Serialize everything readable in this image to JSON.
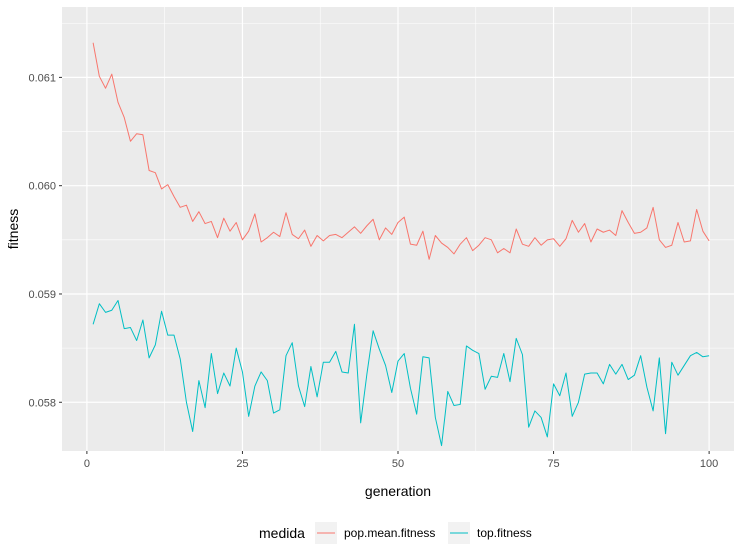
{
  "chart_data": {
    "type": "line",
    "xlabel": "generation",
    "ylabel": "fitness",
    "xlim": [
      -4,
      104
    ],
    "ylim": [
      0.05755,
      0.06165
    ],
    "x_ticks": [
      0,
      25,
      50,
      75,
      100
    ],
    "x_tick_labels": [
      "0",
      "25",
      "50",
      "75",
      "100"
    ],
    "y_ticks": [
      0.058,
      0.059,
      0.06,
      0.061
    ],
    "y_tick_labels": [
      "0.058",
      "0.059",
      "0.060",
      "0.061"
    ],
    "grid": true,
    "legend": {
      "title": "medida",
      "position": "bottom"
    },
    "x": [
      1,
      2,
      3,
      4,
      5,
      6,
      7,
      8,
      9,
      10,
      11,
      12,
      13,
      14,
      15,
      16,
      17,
      18,
      19,
      20,
      21,
      22,
      23,
      24,
      25,
      26,
      27,
      28,
      29,
      30,
      31,
      32,
      33,
      34,
      35,
      36,
      37,
      38,
      39,
      40,
      41,
      42,
      43,
      44,
      45,
      46,
      47,
      48,
      49,
      50,
      51,
      52,
      53,
      54,
      55,
      56,
      57,
      58,
      59,
      60,
      61,
      62,
      63,
      64,
      65,
      66,
      67,
      68,
      69,
      70,
      71,
      72,
      73,
      74,
      75,
      76,
      77,
      78,
      79,
      80,
      81,
      82,
      83,
      84,
      85,
      86,
      87,
      88,
      89,
      90,
      91,
      92,
      93,
      94,
      95,
      96,
      97,
      98,
      99,
      100
    ],
    "series": [
      {
        "name": "pop.mean.fitness",
        "color": "#F8766D",
        "values": [
          0.06132,
          0.06101,
          0.0609,
          0.06103,
          0.06077,
          0.06063,
          0.06041,
          0.06048,
          0.06047,
          0.06014,
          0.06012,
          0.05997,
          0.06001,
          0.0599,
          0.0598,
          0.05982,
          0.05967,
          0.05976,
          0.05965,
          0.05967,
          0.05952,
          0.0597,
          0.05958,
          0.05966,
          0.0595,
          0.05958,
          0.05974,
          0.05948,
          0.05952,
          0.05957,
          0.05953,
          0.05975,
          0.05955,
          0.05951,
          0.05959,
          0.05944,
          0.05954,
          0.05949,
          0.05954,
          0.05955,
          0.05952,
          0.05957,
          0.05962,
          0.05956,
          0.05963,
          0.05969,
          0.0595,
          0.05961,
          0.05955,
          0.05966,
          0.05971,
          0.05946,
          0.05945,
          0.05958,
          0.05932,
          0.05954,
          0.05947,
          0.05943,
          0.05937,
          0.05946,
          0.05952,
          0.0594,
          0.05945,
          0.05952,
          0.0595,
          0.05938,
          0.05942,
          0.05938,
          0.0596,
          0.05946,
          0.05944,
          0.05952,
          0.05945,
          0.0595,
          0.05951,
          0.05944,
          0.05951,
          0.05968,
          0.05957,
          0.05965,
          0.05948,
          0.0596,
          0.05957,
          0.05959,
          0.05954,
          0.05977,
          0.05966,
          0.05956,
          0.05957,
          0.05961,
          0.0598,
          0.0595,
          0.05943,
          0.05945,
          0.05966,
          0.05948,
          0.05949,
          0.05978,
          0.05958,
          0.05949
        ]
      },
      {
        "name": "top.fitness",
        "color": "#00BFC4",
        "values": [
          0.05872,
          0.05891,
          0.05883,
          0.05885,
          0.05894,
          0.05868,
          0.05869,
          0.05857,
          0.05876,
          0.05841,
          0.05853,
          0.05884,
          0.05862,
          0.05862,
          0.0584,
          0.058,
          0.05773,
          0.0582,
          0.05795,
          0.05845,
          0.05808,
          0.05827,
          0.05815,
          0.0585,
          0.05828,
          0.05787,
          0.05815,
          0.05828,
          0.0582,
          0.0579,
          0.05793,
          0.05843,
          0.05855,
          0.05815,
          0.05796,
          0.05833,
          0.05805,
          0.05837,
          0.05837,
          0.05847,
          0.05828,
          0.05827,
          0.05872,
          0.05781,
          0.05826,
          0.05866,
          0.05849,
          0.05834,
          0.05809,
          0.05838,
          0.05845,
          0.05813,
          0.05789,
          0.05842,
          0.05841,
          0.05786,
          0.0576,
          0.0581,
          0.05797,
          0.05798,
          0.05852,
          0.05848,
          0.05845,
          0.05812,
          0.05824,
          0.05823,
          0.05845,
          0.05819,
          0.05859,
          0.05844,
          0.05777,
          0.05792,
          0.05786,
          0.05768,
          0.05817,
          0.05806,
          0.05827,
          0.05787,
          0.058,
          0.05826,
          0.05827,
          0.05827,
          0.05817,
          0.05835,
          0.05826,
          0.05835,
          0.05821,
          0.05825,
          0.05843,
          0.05814,
          0.05792,
          0.05841,
          0.05771,
          0.05837,
          0.05825,
          0.05834,
          0.05843,
          0.05846,
          0.05842,
          0.05843
        ]
      }
    ]
  }
}
